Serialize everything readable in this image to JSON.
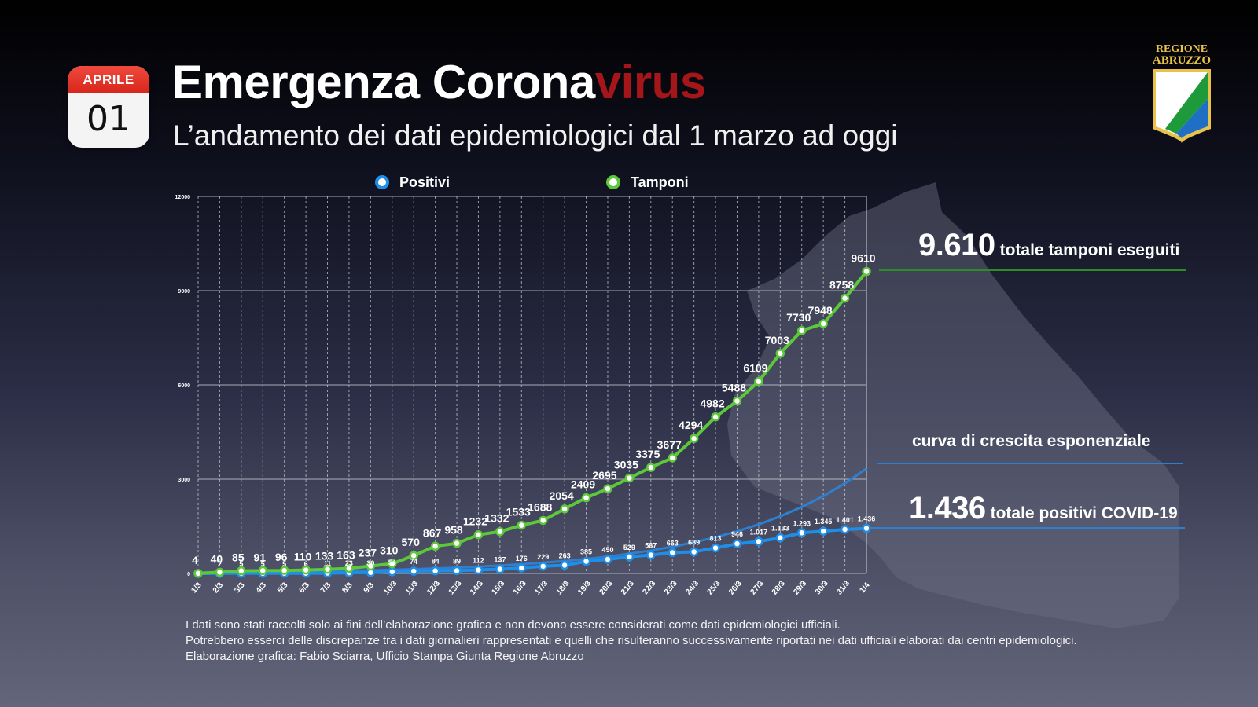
{
  "calendar": {
    "month": "APRILE",
    "day": "01"
  },
  "header": {
    "title_main": "Emergenza Corona",
    "title_accent": "virus",
    "subtitle": "L’andamento dei dati epidemiologici dal 1 marzo ad oggi"
  },
  "logo": {
    "line1": "REGIONE",
    "line2": "ABRUZZO"
  },
  "colors": {
    "positivi": "#1e8fe8",
    "tamponi": "#5cc83a",
    "accent": "#a5161a",
    "trend": "#2f7fd0"
  },
  "stats": {
    "tamponi_value": "9.610",
    "tamponi_label": "totale tamponi eseguiti",
    "curve_label": "curva di crescita esponenziale",
    "positivi_value": "1.436",
    "positivi_label": "totale positivi COVID-19"
  },
  "notes": [
    "I dati sono stati raccolti solo ai fini dell’elaborazione grafica e non devono essere considerati come dati epidemiologici ufficiali.",
    "Potrebbero esserci delle discrepanze tra i dati giornalieri rappresentati e quelli che risulteranno successivamente riportati nei dati ufficiali elaborati dai centri epidemiologici.",
    "Elaborazione grafica: Fabio Sciarra, Ufficio Stampa Giunta Regione Abruzzo"
  ],
  "chart_data": {
    "type": "line",
    "ylim": [
      0,
      12000
    ],
    "yticks": [
      0,
      3000,
      6000,
      9000,
      12000
    ],
    "grid": true,
    "legend_position": "top",
    "x": [
      "1/3",
      "2/3",
      "3/3",
      "4/3",
      "5/3",
      "6/3",
      "7/3",
      "8/3",
      "9/3",
      "10/3",
      "11/3",
      "12/3",
      "13/3",
      "14/3",
      "15/3",
      "16/3",
      "17/3",
      "18/3",
      "19/3",
      "20/3",
      "21/3",
      "22/3",
      "23/3",
      "24/3",
      "25/3",
      "26/3",
      "27/3",
      "28/3",
      "29/3",
      "30/3",
      "31/3",
      "1/4"
    ],
    "series": [
      {
        "name": "Positivi",
        "values": [
          0,
          2,
          5,
          5,
          5,
          6,
          11,
          23,
          30,
          54,
          74,
          84,
          89,
          112,
          137,
          176,
          229,
          263,
          385,
          450,
          529,
          587,
          663,
          689,
          813,
          946,
          1017,
          1133,
          1293,
          1345,
          1401,
          1436
        ],
        "labels": [
          "",
          "2",
          "5",
          "5",
          "5",
          "6",
          "11",
          "23",
          "30",
          "54",
          "74",
          "84",
          "89",
          "112",
          "137",
          "176",
          "229",
          "263",
          "385",
          "450",
          "529",
          "587",
          "663",
          "689",
          "813",
          "946",
          "1.017",
          "1.133",
          "1.293",
          "1.345",
          "1.401",
          "1.436"
        ]
      },
      {
        "name": "Tamponi",
        "values": [
          4,
          40,
          85,
          91,
          96,
          110,
          133,
          163,
          237,
          310,
          570,
          867,
          958,
          1232,
          1332,
          1533,
          1688,
          2054,
          2409,
          2695,
          3035,
          3375,
          3677,
          4294,
          4982,
          5488,
          6109,
          7003,
          7730,
          7948,
          8758,
          9610
        ],
        "labels": [
          "4",
          "40",
          "85",
          "91",
          "96",
          "110",
          "133",
          "163",
          "237",
          "310",
          "570",
          "867",
          "958",
          "1232",
          "1332",
          "1533",
          "1688",
          "2054",
          "2409",
          "2695",
          "3035",
          "3375",
          "3677",
          "4294",
          "4982",
          "5488",
          "6109",
          "7003",
          "7730",
          "7948",
          "8758",
          "9610"
        ]
      }
    ]
  }
}
